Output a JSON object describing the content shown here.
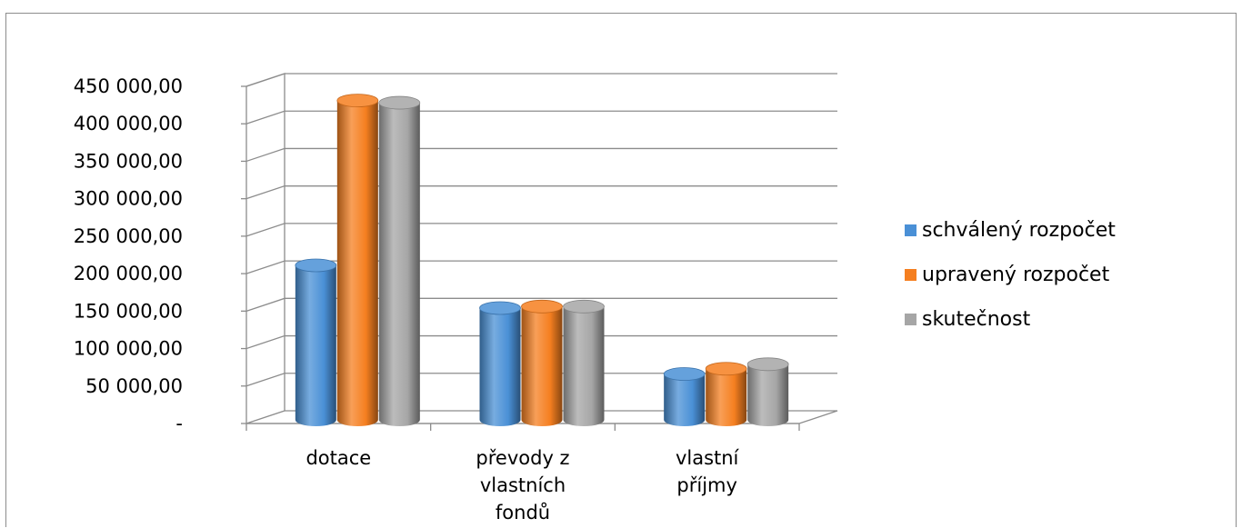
{
  "chart_data": {
    "type": "bar",
    "style": "3d-cylinder",
    "categories": [
      [
        "dotace"
      ],
      [
        "převody z",
        "vlastních",
        "fondů"
      ],
      [
        "vlastní",
        "příjmy"
      ]
    ],
    "series": [
      {
        "name": "schválený rozpočet",
        "color": "#4A90D6",
        "values": [
          205000,
          148000,
          60000
        ]
      },
      {
        "name": "upravený rozpočet",
        "color": "#F57F20",
        "values": [
          425000,
          150000,
          67000
        ]
      },
      {
        "name": "skutečnost",
        "color": "#A6A6A6",
        "values": [
          422000,
          150000,
          73000
        ]
      }
    ],
    "y_ticks": [
      "-",
      "50 000,00",
      "100 000,00",
      "150 000,00",
      "200 000,00",
      "250 000,00",
      "300 000,00",
      "350 000,00",
      "400 000,00",
      "450 000,00"
    ],
    "ylim": [
      0,
      450000
    ],
    "grid": true,
    "legend_position": "right"
  }
}
